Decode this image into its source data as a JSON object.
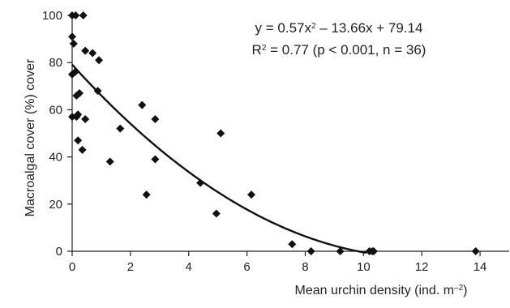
{
  "chart_data": {
    "type": "scatter",
    "xlabel": "Mean urchin density (ind. m",
    "xlabel_sup": "–2",
    "xlabel_end": ")",
    "ylabel": "Macroalgal cover (%) cover",
    "xlim": [
      0,
      15
    ],
    "ylim": [
      0,
      100
    ],
    "xticks": [
      0,
      2,
      4,
      6,
      8,
      10,
      12,
      14
    ],
    "yticks": [
      0,
      20,
      40,
      60,
      80,
      100
    ],
    "grid": false,
    "legend": "none",
    "annotation": {
      "equation_a": "y = 0.57x",
      "equation_sup": "2",
      "equation_b": " – 13.66x + 79.14",
      "r2_a": "R",
      "r2_sup": "2",
      "r2_b": " = 0.77  (p < 0.001, n = 36)"
    },
    "trendline": {
      "a": 0.57,
      "b": -13.66,
      "c": 79.14,
      "x_range": [
        0,
        10.1
      ]
    },
    "series": [
      {
        "marker": "diamond",
        "color": "#111111",
        "points": [
          [
            0.0,
            100
          ],
          [
            0.12,
            100
          ],
          [
            0.38,
            100
          ],
          [
            0.0,
            91
          ],
          [
            0.05,
            88
          ],
          [
            0.0,
            75
          ],
          [
            0.1,
            76
          ],
          [
            0.45,
            85
          ],
          [
            0.7,
            84
          ],
          [
            0.92,
            81
          ],
          [
            0.88,
            68
          ],
          [
            0.15,
            66
          ],
          [
            0.25,
            67
          ],
          [
            0.2,
            58
          ],
          [
            0.0,
            57
          ],
          [
            0.15,
            57
          ],
          [
            0.45,
            56
          ],
          [
            0.2,
            47
          ],
          [
            0.35,
            43
          ],
          [
            1.65,
            52
          ],
          [
            1.3,
            38
          ],
          [
            2.4,
            62
          ],
          [
            2.85,
            56
          ],
          [
            2.85,
            39
          ],
          [
            2.55,
            24
          ],
          [
            4.4,
            29
          ],
          [
            4.95,
            16
          ],
          [
            5.1,
            50
          ],
          [
            6.15,
            24
          ],
          [
            7.55,
            3
          ],
          [
            8.2,
            0
          ],
          [
            9.2,
            0
          ],
          [
            10.2,
            0
          ],
          [
            10.3,
            0
          ],
          [
            10.35,
            0
          ],
          [
            13.85,
            0
          ]
        ]
      }
    ]
  }
}
